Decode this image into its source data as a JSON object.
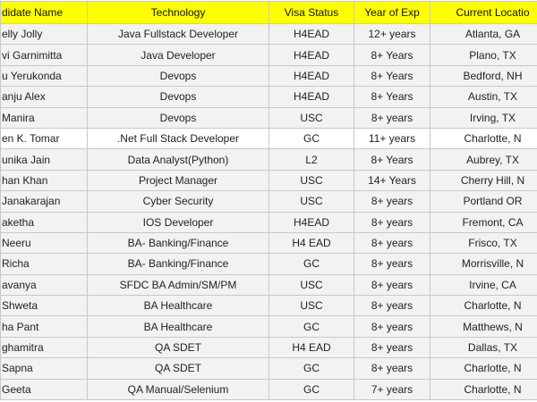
{
  "table": {
    "header": [
      "didate Name",
      "Technology",
      "Visa Status",
      "Year of Exp",
      "Current Locatio"
    ],
    "rows": [
      [
        "elly Jolly",
        "Java Fullstack Developer",
        "H4EAD",
        "12+ years",
        "Atlanta, GA"
      ],
      [
        "vi Garnimitta",
        "Java Developer",
        "H4EAD",
        "8+ Years",
        "Plano, TX"
      ],
      [
        "u Yerukonda",
        "Devops",
        "H4EAD",
        "8+ Years",
        "Bedford, NH"
      ],
      [
        "anju Alex",
        "Devops",
        "H4EAD",
        "8+ Years",
        "Austin, TX"
      ],
      [
        "Manira",
        "Devops",
        "USC",
        "8+ years",
        "Irving, TX"
      ],
      [
        "en K. Tomar",
        ".Net Full Stack Developer",
        "GC",
        "11+ years",
        "Charlotte, N"
      ],
      [
        "unika Jain",
        "Data Analyst(Python)",
        "L2",
        "8+ Years",
        "Aubrey, TX"
      ],
      [
        "han Khan",
        "Project Manager",
        "USC",
        "14+ Years",
        "Cherry Hill, N"
      ],
      [
        "Janakarajan",
        "Cyber Security",
        "USC",
        "8+ years",
        "Portland OR"
      ],
      [
        "aketha",
        "IOS Developer",
        "H4EAD",
        "8+ years",
        "Fremont, CA"
      ],
      [
        "Neeru",
        "BA- Banking/Finance",
        "H4 EAD",
        "8+ years",
        "Frisco, TX"
      ],
      [
        "Richa",
        "BA- Banking/Finance",
        "GC",
        "8+ years",
        "Morrisville, N"
      ],
      [
        "avanya",
        "SFDC BA Admin/SM/PM",
        "USC",
        "8+ years",
        "Irvine, CA"
      ],
      [
        "Shweta",
        "BA Healthcare",
        "USC",
        "8+ years",
        "Charlotte, N"
      ],
      [
        "ha Pant",
        "BA Healthcare",
        "GC",
        "8+ years",
        "Matthews, N"
      ],
      [
        "ghamitra",
        "QA SDET",
        "H4 EAD",
        "8+ years",
        "Dallas, TX"
      ],
      [
        "Sapna",
        "QA SDET",
        "GC",
        "8+ years",
        "Charlotte, N"
      ],
      [
        "Geeta",
        "QA Manual/Selenium",
        "GC",
        "7+ years",
        "Charlotte, N"
      ]
    ]
  }
}
